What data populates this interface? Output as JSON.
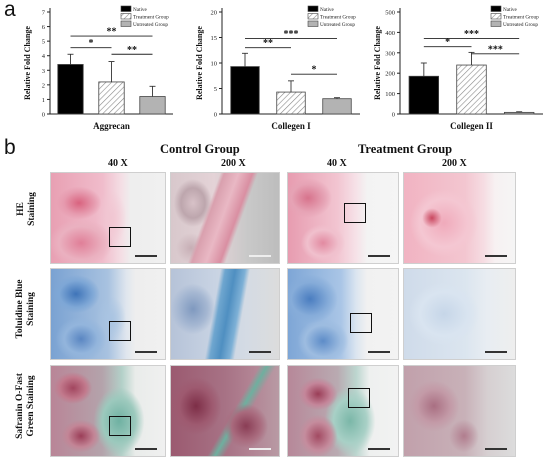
{
  "panel_a": {
    "letter": "a"
  },
  "panel_b": {
    "letter": "b"
  },
  "legend": [
    "Native",
    "Treatment Group",
    "Untreated Group"
  ],
  "y_axis_label": "Relative Fold Change",
  "colors": {
    "native": "#000000",
    "treatment": "#ffffff",
    "untreated": "#b3b3b3",
    "he_pink": "#e6a6b8",
    "tb_blue": "#6c9bd0",
    "so_green": "#7fb7a8",
    "so_red": "#9a3b55"
  },
  "chart_data": [
    {
      "type": "bar",
      "title": "Aggrecan",
      "ylabel": "Relative Fold Change",
      "categories": [
        "Native",
        "Treatment Group",
        "Untreated Group"
      ],
      "values": [
        3.4,
        2.2,
        1.2
      ],
      "errors": [
        0.7,
        1.4,
        0.7
      ],
      "ylim": [
        0,
        7
      ],
      "yticks": [
        0,
        1,
        2,
        3,
        4,
        5,
        6,
        7
      ],
      "significance": [
        {
          "pair": [
            0,
            1
          ],
          "label": "*",
          "level": 4.55
        },
        {
          "pair": [
            0,
            2
          ],
          "label": "**",
          "level": 5.35
        },
        {
          "pair": [
            1,
            2
          ],
          "label": "**",
          "level": 4.1
        }
      ]
    },
    {
      "type": "bar",
      "title": "Collegen I",
      "ylabel": "Relative Fold Change",
      "categories": [
        "Native",
        "Treatment Group",
        "Untreated Group"
      ],
      "values": [
        9.3,
        4.3,
        3.0
      ],
      "errors": [
        2.6,
        2.2,
        0.2
      ],
      "ylim": [
        0,
        20
      ],
      "yticks": [
        0,
        5,
        10,
        15,
        20
      ],
      "significance": [
        {
          "pair": [
            0,
            1
          ],
          "label": "**",
          "level": 13.0
        },
        {
          "pair": [
            0,
            2
          ],
          "label": "***",
          "level": 14.8
        },
        {
          "pair": [
            1,
            2
          ],
          "label": "*",
          "level": 7.8
        }
      ]
    },
    {
      "type": "bar",
      "title": "Collegen II",
      "ylabel": "Relative Fold Change",
      "categories": [
        "Native",
        "Treatment Group",
        "Untreated Group"
      ],
      "values": [
        185,
        240,
        8
      ],
      "errors": [
        65,
        62,
        3
      ],
      "ylim": [
        0,
        500
      ],
      "yticks": [
        0,
        100,
        200,
        300,
        400,
        500
      ],
      "significance": [
        {
          "pair": [
            0,
            1
          ],
          "label": "*",
          "level": 330
        },
        {
          "pair": [
            0,
            2
          ],
          "label": "***",
          "level": 370
        },
        {
          "pair": [
            1,
            2
          ],
          "label": "***",
          "level": 295
        }
      ]
    }
  ],
  "histology": {
    "groups": [
      "Control Group",
      "Treatment Group"
    ],
    "magnifications": [
      "40 X",
      "200 X",
      "40 X",
      "200 X"
    ],
    "rows": [
      {
        "label_lines": [
          "HE",
          "Staining"
        ],
        "stain": "he"
      },
      {
        "label_lines": [
          "Toluidine Blue",
          "Staining"
        ],
        "stain": "tb"
      },
      {
        "label_lines": [
          "Safranin O-Fast",
          "Green Staining"
        ],
        "stain": "so"
      }
    ]
  }
}
